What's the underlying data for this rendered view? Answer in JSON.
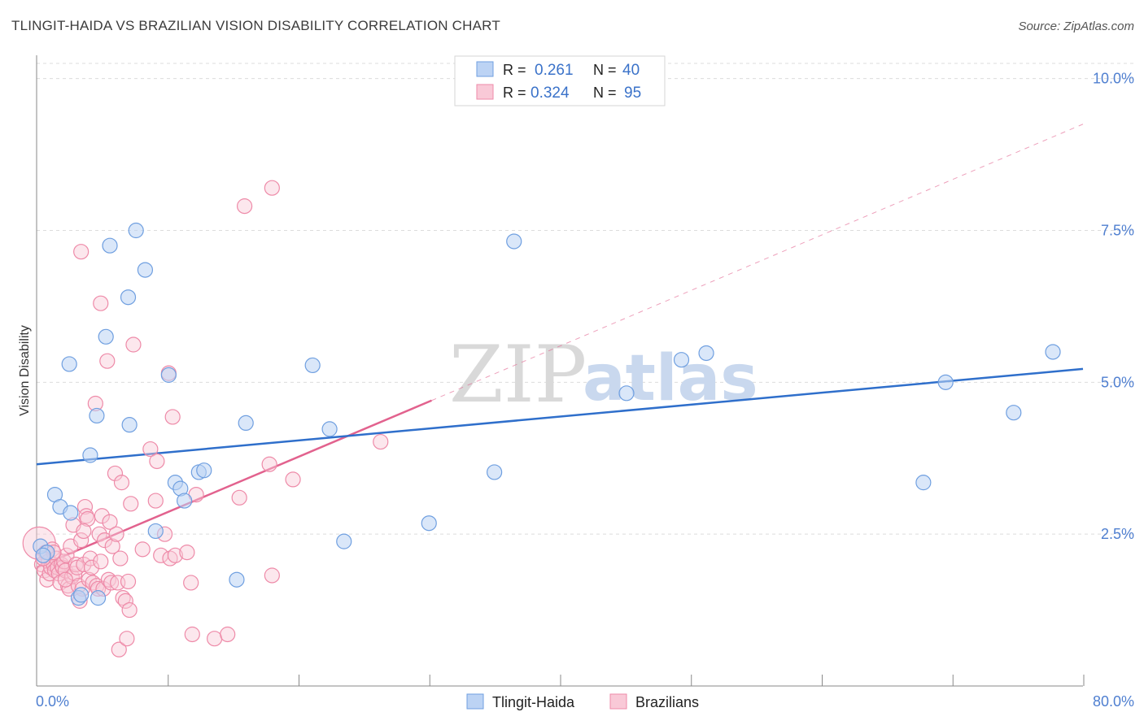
{
  "title": "TLINGIT-HAIDA VS BRAZILIAN VISION DISABILITY CORRELATION CHART",
  "source": "Source: ZipAtlas.com",
  "watermark": {
    "zip": "ZIP",
    "atlas": "atlas"
  },
  "colors": {
    "blue": "#6f9fe0",
    "blue_fill": "#bcd3f4",
    "blue_line": "#2f6fcb",
    "pink": "#ee8aa8",
    "pink_fill": "#f9c9d7",
    "pink_line": "#e2628e",
    "grid": "#dcdcdc",
    "tick_text": "#4f7fd0"
  },
  "legend": {
    "rows": [
      {
        "r_label": "R = ",
        "r_value": "0.261",
        "n_label": "N = ",
        "n_value": "40"
      },
      {
        "r_label": "R = ",
        "r_value": "0.324",
        "n_label": "N = ",
        "n_value": "95"
      }
    ]
  },
  "chart_data": {
    "type": "scatter",
    "title": "TLINGIT-HAIDA VS BRAZILIAN VISION DISABILITY CORRELATION CHART",
    "xlabel": "",
    "ylabel": "Vision Disability",
    "xlim": [
      0,
      80
    ],
    "ylim": [
      0,
      10.25
    ],
    "x_tick_labels": [
      "0.0%",
      "80.0%"
    ],
    "y_ticks": [
      2.5,
      5.0,
      7.5,
      10.0
    ],
    "y_tick_labels": [
      "2.5%",
      "5.0%",
      "7.5%",
      "10.0%"
    ],
    "grid": true,
    "legend_position": "top-center",
    "series": [
      {
        "name": "Tlingit-Haida",
        "r": 0.261,
        "n": 40,
        "trend": {
          "x0": 0,
          "y0": 3.65,
          "x1": 80,
          "y1": 5.22,
          "style": "solid"
        },
        "points": [
          [
            0.3,
            2.3
          ],
          [
            0.8,
            2.2
          ],
          [
            1.4,
            3.15
          ],
          [
            1.8,
            2.95
          ],
          [
            2.5,
            5.3
          ],
          [
            2.6,
            2.85
          ],
          [
            3.2,
            1.45
          ],
          [
            3.4,
            1.5
          ],
          [
            4.1,
            3.8
          ],
          [
            4.6,
            4.45
          ],
          [
            4.7,
            1.45
          ],
          [
            5.3,
            5.75
          ],
          [
            5.6,
            7.25
          ],
          [
            7.0,
            6.4
          ],
          [
            7.1,
            4.3
          ],
          [
            7.6,
            7.5
          ],
          [
            8.3,
            6.85
          ],
          [
            9.1,
            2.55
          ],
          [
            10.1,
            5.12
          ],
          [
            10.6,
            3.35
          ],
          [
            11.0,
            3.25
          ],
          [
            11.3,
            3.05
          ],
          [
            12.4,
            3.52
          ],
          [
            12.8,
            3.55
          ],
          [
            15.3,
            1.75
          ],
          [
            16.0,
            4.33
          ],
          [
            21.1,
            5.28
          ],
          [
            22.4,
            4.23
          ],
          [
            23.5,
            2.38
          ],
          [
            30.0,
            2.68
          ],
          [
            35.0,
            3.52
          ],
          [
            36.5,
            7.32
          ],
          [
            45.1,
            4.82
          ],
          [
            49.3,
            5.37
          ],
          [
            51.2,
            5.48
          ],
          [
            67.8,
            3.35
          ],
          [
            69.5,
            5.0
          ],
          [
            74.7,
            4.5
          ],
          [
            77.7,
            5.5
          ],
          [
            0.5,
            2.15
          ]
        ]
      },
      {
        "name": "Brazilians",
        "r": 0.324,
        "n": 95,
        "trend": {
          "x0": 0,
          "y0": 1.95,
          "x1": 30.2,
          "y1": 4.7,
          "style": "solid"
        },
        "trend_extension": {
          "x0": 30.2,
          "y0": 4.7,
          "x1": 80,
          "y1": 9.25,
          "style": "dashed"
        },
        "points": [
          [
            0.2,
            2.35
          ],
          [
            0.4,
            2.0
          ],
          [
            0.6,
            1.9
          ],
          [
            0.7,
            2.2
          ],
          [
            0.8,
            1.75
          ],
          [
            0.9,
            2.05
          ],
          [
            1.0,
            1.85
          ],
          [
            1.1,
            1.95
          ],
          [
            1.2,
            2.25
          ],
          [
            1.3,
            2.0
          ],
          [
            1.4,
            1.9
          ],
          [
            1.5,
            2.1
          ],
          [
            1.6,
            1.95
          ],
          [
            1.7,
            1.85
          ],
          [
            1.8,
            1.7
          ],
          [
            1.9,
            2.0
          ],
          [
            2.0,
            1.95
          ],
          [
            2.1,
            2.05
          ],
          [
            2.2,
            1.9
          ],
          [
            2.3,
            2.15
          ],
          [
            2.4,
            1.65
          ],
          [
            2.5,
            1.6
          ],
          [
            2.6,
            2.3
          ],
          [
            2.7,
            1.8
          ],
          [
            2.8,
            2.65
          ],
          [
            2.9,
            1.85
          ],
          [
            3.0,
            2.0
          ],
          [
            3.1,
            1.95
          ],
          [
            3.2,
            1.65
          ],
          [
            3.3,
            1.4
          ],
          [
            3.4,
            2.4
          ],
          [
            3.5,
            1.6
          ],
          [
            3.6,
            2.0
          ],
          [
            3.7,
            2.95
          ],
          [
            3.8,
            2.8
          ],
          [
            3.9,
            2.75
          ],
          [
            4.0,
            1.75
          ],
          [
            4.1,
            2.1
          ],
          [
            4.2,
            1.95
          ],
          [
            4.3,
            1.7
          ],
          [
            4.5,
            4.65
          ],
          [
            4.6,
            1.65
          ],
          [
            4.7,
            1.6
          ],
          [
            4.8,
            2.5
          ],
          [
            4.9,
            2.05
          ],
          [
            5.0,
            2.8
          ],
          [
            5.1,
            1.6
          ],
          [
            5.2,
            2.4
          ],
          [
            5.4,
            5.35
          ],
          [
            5.5,
            1.75
          ],
          [
            5.6,
            2.7
          ],
          [
            5.7,
            1.7
          ],
          [
            5.8,
            2.3
          ],
          [
            6.0,
            3.5
          ],
          [
            6.1,
            2.5
          ],
          [
            6.2,
            1.7
          ],
          [
            6.3,
            0.6
          ],
          [
            6.4,
            2.1
          ],
          [
            6.5,
            3.35
          ],
          [
            6.6,
            1.45
          ],
          [
            6.8,
            1.4
          ],
          [
            6.9,
            0.78
          ],
          [
            7.0,
            1.72
          ],
          [
            7.1,
            1.25
          ],
          [
            7.2,
            3.0
          ],
          [
            7.4,
            5.62
          ],
          [
            8.1,
            2.25
          ],
          [
            8.7,
            3.9
          ],
          [
            9.1,
            3.05
          ],
          [
            9.2,
            3.7
          ],
          [
            9.5,
            2.15
          ],
          [
            9.8,
            2.5
          ],
          [
            10.1,
            5.15
          ],
          [
            10.2,
            2.1
          ],
          [
            10.4,
            4.43
          ],
          [
            10.6,
            2.15
          ],
          [
            11.5,
            2.2
          ],
          [
            11.8,
            1.7
          ],
          [
            11.9,
            0.85
          ],
          [
            12.2,
            3.15
          ],
          [
            13.6,
            0.78
          ],
          [
            14.6,
            0.85
          ],
          [
            15.5,
            3.1
          ],
          [
            15.9,
            7.9
          ],
          [
            17.8,
            3.65
          ],
          [
            18.0,
            8.2
          ],
          [
            18.0,
            1.82
          ],
          [
            19.6,
            3.4
          ],
          [
            26.3,
            4.02
          ],
          [
            3.4,
            7.15
          ],
          [
            4.9,
            6.3
          ],
          [
            1.3,
            2.2
          ],
          [
            2.2,
            1.75
          ],
          [
            0.5,
            2.1
          ],
          [
            3.6,
            2.55
          ]
        ]
      }
    ]
  },
  "bottom_legend": {
    "items": [
      "Tlingit-Haida",
      "Brazilians"
    ]
  }
}
